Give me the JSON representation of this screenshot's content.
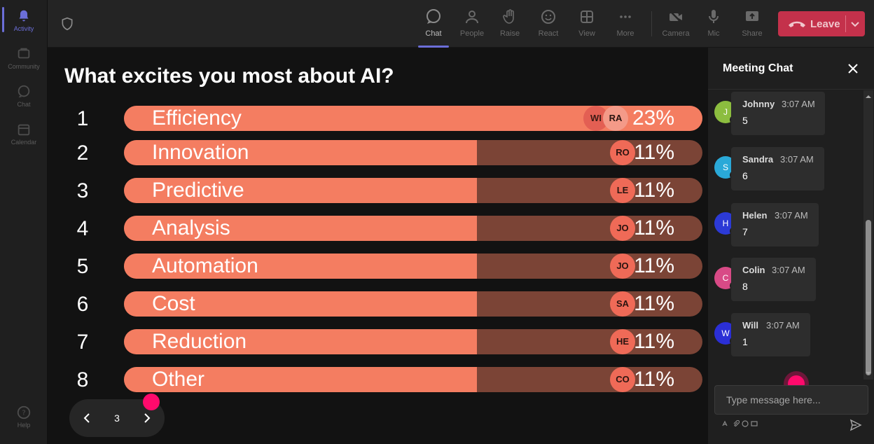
{
  "rail": {
    "items": [
      {
        "label": "Activity",
        "icon": "bell-icon"
      },
      {
        "label": "Community",
        "icon": "community-icon"
      },
      {
        "label": "Chat",
        "icon": "chat-icon"
      },
      {
        "label": "Calendar",
        "icon": "calendar-icon"
      }
    ],
    "help": {
      "label": "Help",
      "icon": "help-icon"
    }
  },
  "toolbar": {
    "buttons": [
      {
        "label": "Chat",
        "icon": "chat-icon"
      },
      {
        "label": "People",
        "icon": "people-icon"
      },
      {
        "label": "Raise",
        "icon": "raise-hand-icon"
      },
      {
        "label": "React",
        "icon": "react-icon"
      },
      {
        "label": "View",
        "icon": "view-icon"
      },
      {
        "label": "More",
        "icon": "more-icon"
      },
      {
        "label": "Camera",
        "icon": "camera-off-icon"
      },
      {
        "label": "Mic",
        "icon": "mic-icon"
      },
      {
        "label": "Share",
        "icon": "share-icon"
      }
    ],
    "leave_label": "Leave",
    "colors": {
      "leave": "#c4314b",
      "accent": "#6b6ed8"
    }
  },
  "poll": {
    "question": "What excites you most about AI?",
    "rows": [
      {
        "rank": "1",
        "label": "Efficiency",
        "percent": "23%",
        "avatars": [
          "WI",
          "RA"
        ]
      },
      {
        "rank": "2",
        "label": "Innovation",
        "percent": "11%",
        "avatars": [
          "RO"
        ]
      },
      {
        "rank": "3",
        "label": "Predictive",
        "percent": "11%",
        "avatars": [
          "LE"
        ]
      },
      {
        "rank": "4",
        "label": "Analysis",
        "percent": "11%",
        "avatars": [
          "JO"
        ]
      },
      {
        "rank": "5",
        "label": "Automation",
        "percent": "11%",
        "avatars": [
          "JO"
        ]
      },
      {
        "rank": "6",
        "label": "Cost",
        "percent": "11%",
        "avatars": [
          "SA"
        ]
      },
      {
        "rank": "7",
        "label": "Reduction",
        "percent": "11%",
        "avatars": [
          "HE"
        ]
      },
      {
        "rank": "8",
        "label": "Other",
        "percent": "11%",
        "avatars": [
          "CO"
        ]
      }
    ],
    "fill_fraction": [
      1.0,
      0.61,
      0.61,
      0.61,
      0.61,
      0.61,
      0.61,
      0.61
    ],
    "colors": {
      "bar": "#f47d61",
      "track": "#7b4436"
    },
    "page": "3"
  },
  "chat": {
    "title": "Meeting Chat",
    "messages": [
      {
        "name": "Johnny",
        "time": "3:07 AM",
        "text": "5",
        "initial": "J",
        "color": "#8cbd3f"
      },
      {
        "name": "Sandra",
        "time": "3:07 AM",
        "text": "6",
        "initial": "S",
        "color": "#2aa9d8"
      },
      {
        "name": "Helen",
        "time": "3:07 AM",
        "text": "7",
        "initial": "H",
        "color": "#2c3ad6"
      },
      {
        "name": "Colin",
        "time": "3:07 AM",
        "text": "8",
        "initial": "C",
        "color": "#d84a86"
      },
      {
        "name": "Will",
        "time": "3:07 AM",
        "text": "1",
        "initial": "W",
        "color": "#2b2fd6"
      }
    ],
    "placeholder": "Type message here..."
  }
}
